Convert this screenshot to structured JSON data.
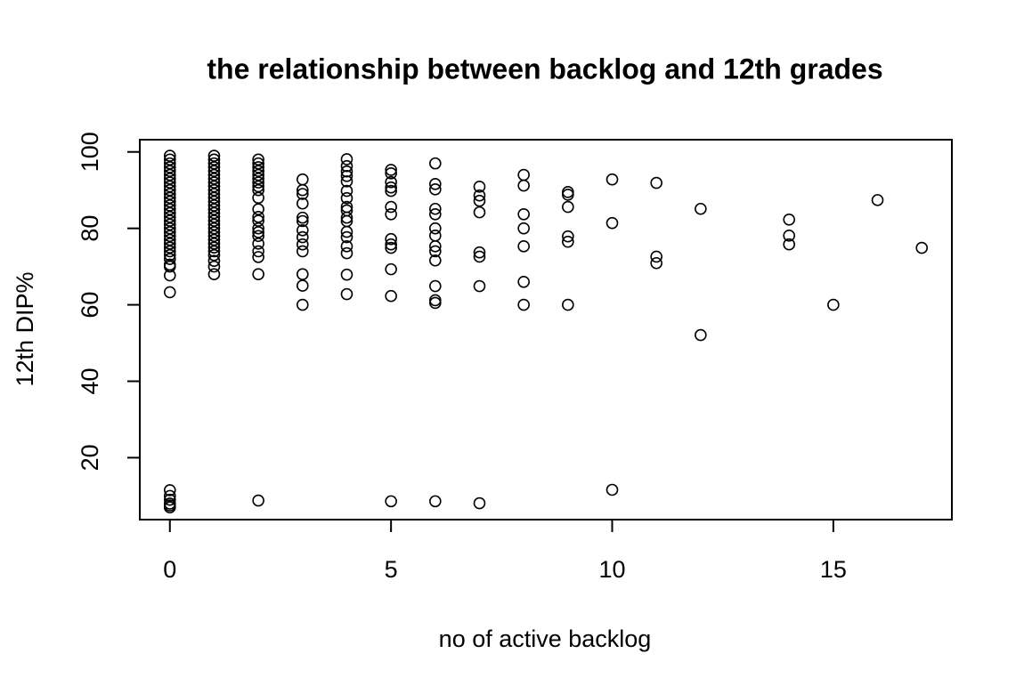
{
  "chart_data": {
    "type": "scatter",
    "title": "the relationship between backlog and 12th grades",
    "x_label": "no of active backlog",
    "y_label": "12th DIP%",
    "x": [
      0,
      0,
      0,
      0,
      0,
      0,
      0,
      0,
      0,
      0,
      0,
      0,
      0,
      0,
      0,
      0,
      0,
      0,
      0,
      0,
      0,
      0,
      0,
      0,
      0,
      0,
      0,
      0,
      0,
      0,
      0,
      0,
      0,
      0,
      0,
      0,
      0,
      0,
      1,
      1,
      1,
      1,
      1,
      1,
      1,
      1,
      1,
      1,
      1,
      1,
      1,
      1,
      1,
      1,
      1,
      1,
      1,
      1,
      1,
      1,
      1,
      1,
      1,
      1,
      1,
      1,
      1,
      1,
      2,
      2,
      2,
      2,
      2,
      2,
      2,
      2,
      2,
      2,
      2,
      2,
      2,
      2,
      2,
      2,
      2,
      2,
      2,
      2,
      2,
      3,
      3,
      3,
      3,
      3,
      3,
      3,
      3,
      3,
      3,
      3,
      3,
      3,
      4,
      4,
      4,
      4,
      4,
      4,
      4,
      4,
      4,
      4,
      4,
      4,
      4,
      4,
      4,
      4,
      4,
      5,
      5,
      5,
      5,
      5,
      5,
      5,
      5,
      5,
      5,
      5,
      5,
      5,
      6,
      6,
      6,
      6,
      6,
      6,
      6,
      6,
      6,
      6,
      6,
      6,
      6,
      6,
      7,
      7,
      7,
      7,
      7,
      7,
      7,
      7,
      8,
      8,
      8,
      8,
      8,
      8,
      8,
      9,
      9,
      9,
      9,
      9,
      9,
      10,
      10,
      10,
      11,
      11,
      11,
      12,
      12,
      14,
      14,
      14,
      15,
      16,
      17
    ],
    "values": [
      7,
      7.5,
      8,
      9,
      10,
      11.5,
      63.3,
      67.7,
      70,
      70.5,
      72,
      73,
      74,
      75,
      76,
      77,
      78,
      79,
      80,
      81,
      82,
      83,
      84,
      85,
      86,
      87,
      88,
      89,
      90,
      91,
      92,
      93,
      94,
      95,
      96,
      97,
      98,
      99,
      68,
      70,
      71.5,
      73,
      74,
      75,
      76,
      77,
      78,
      79,
      80,
      81,
      82,
      83,
      84,
      85,
      86,
      87,
      88,
      89,
      90,
      91,
      92,
      93,
      94,
      95,
      96,
      97,
      98,
      99,
      8.8,
      68,
      72.5,
      74,
      76,
      78,
      79,
      80,
      82,
      83,
      85,
      88,
      90,
      91,
      92,
      93,
      94,
      95,
      96,
      97,
      98,
      92.8,
      90,
      89,
      86.5,
      82.8,
      81.9,
      79.5,
      77.7,
      75.8,
      74,
      68,
      65,
      60,
      98.1,
      96.3,
      94.9,
      93.7,
      92.3,
      89.8,
      87.9,
      85.6,
      84.7,
      82.8,
      81.9,
      79.1,
      77.7,
      75.3,
      73.5,
      67.9,
      62.8,
      95.3,
      94.4,
      92.1,
      90.7,
      89.8,
      85.6,
      83.7,
      77.2,
      75.8,
      74.9,
      69.3,
      62.3,
      8.6,
      97,
      91.6,
      90.2,
      85.1,
      83.7,
      80,
      78.1,
      75.3,
      74,
      71.6,
      64.9,
      61.2,
      60.5,
      8.6,
      90.9,
      88.6,
      87.2,
      84.2,
      73.7,
      72.6,
      64.9,
      8.1,
      94,
      91.2,
      83.7,
      80,
      75.3,
      66,
      60,
      89.5,
      88.8,
      85.6,
      77.9,
      76.5,
      60,
      92.8,
      81.4,
      11.6,
      91.9,
      72.6,
      70.9,
      85.1,
      52.1,
      82.3,
      78.1,
      75.8,
      60,
      87.4,
      74.9
    ],
    "xlim": [
      -0.68,
      17.68
    ],
    "ylim": [
      3.8,
      103.2
    ],
    "xticks": [
      0,
      5,
      10,
      15
    ],
    "yticks": [
      20,
      40,
      60,
      80,
      100
    ],
    "color": "#000000"
  }
}
